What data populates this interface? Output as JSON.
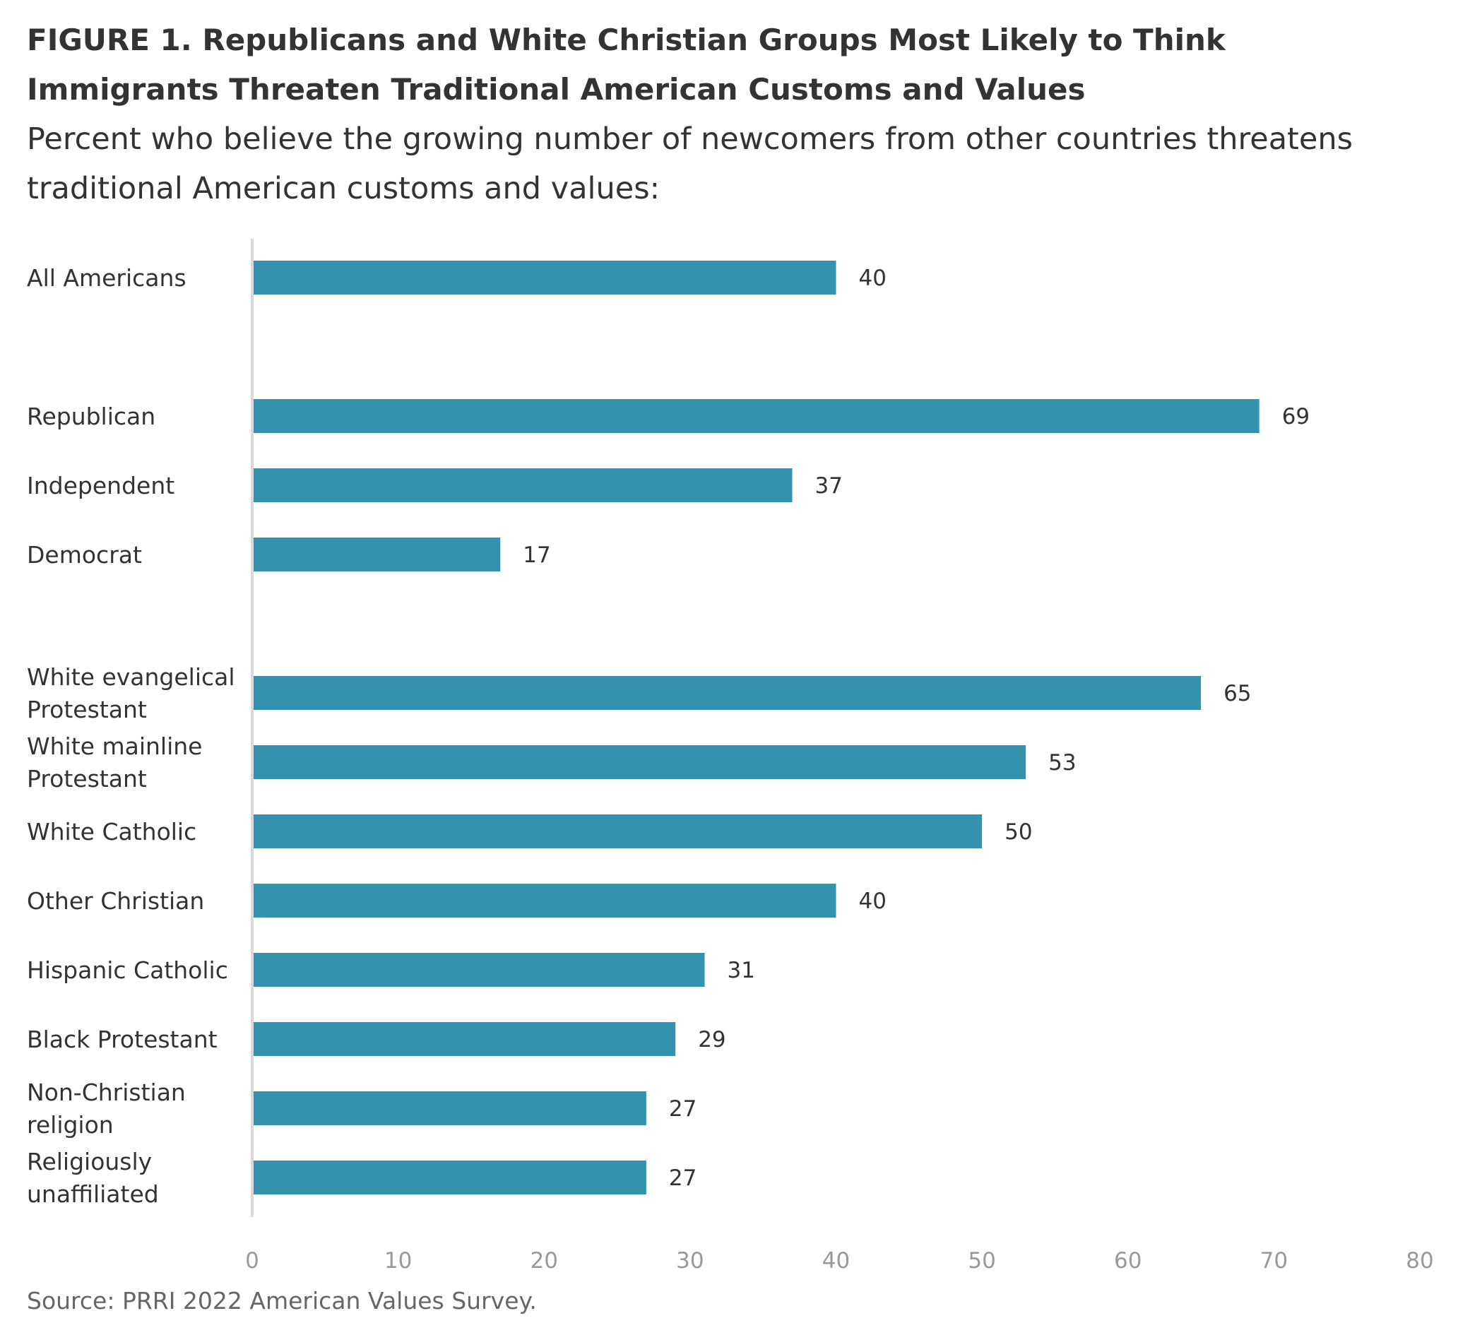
{
  "figure": {
    "label": "FIGURE 1.",
    "title": "Republicans and White Christian Groups Most Likely to Think Immigrants Threaten Traditional American Customs and Values",
    "subtitle": "Percent who believe the growing number of newcomers from other countries threatens traditional American customs and values:",
    "source": "Source: PRRI 2022 American Values Survey."
  },
  "colors": {
    "bar": "#3592AE",
    "axis_line": "#d9d9d9",
    "tick_text": "#999999",
    "label_text": "#333333"
  },
  "chart_data": {
    "type": "bar",
    "orientation": "horizontal",
    "categories": [
      "All Americans",
      "Republican",
      "Independent",
      "Democrat",
      "White evangelical Protestant",
      "White mainline Protestant",
      "White Catholic",
      "Other Christian",
      "Hispanic Catholic",
      "Black Protestant",
      "Non-Christian religion",
      "Religiously unaffiliated"
    ],
    "category_lines": [
      [
        "All Americans"
      ],
      [
        "Republican"
      ],
      [
        "Independent"
      ],
      [
        "Democrat"
      ],
      [
        "White evangelical",
        "Protestant"
      ],
      [
        "White mainline",
        "Protestant"
      ],
      [
        "White Catholic"
      ],
      [
        "Other Christian"
      ],
      [
        "Hispanic Catholic"
      ],
      [
        "Black Protestant"
      ],
      [
        "Non-Christian",
        "religion"
      ],
      [
        "Religiously",
        "unaffiliated"
      ]
    ],
    "values": [
      40,
      69,
      37,
      17,
      65,
      53,
      50,
      40,
      31,
      29,
      27,
      27
    ],
    "groups": [
      [
        0
      ],
      [
        1,
        2,
        3
      ],
      [
        4,
        5,
        6,
        7,
        8,
        9,
        10,
        11
      ]
    ],
    "xlim": [
      0,
      80
    ],
    "xticks": [
      0,
      10,
      20,
      30,
      40,
      50,
      60,
      70,
      80
    ],
    "data_labels": true,
    "grid": false,
    "legend": "none"
  }
}
